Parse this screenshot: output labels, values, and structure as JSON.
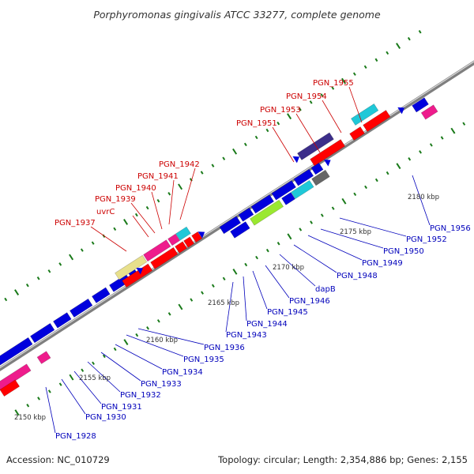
{
  "title": "Porphyromonas gingivalis ATCC 33277, complete genome",
  "footer": {
    "accession": "Accession: NC_010729",
    "topology": "Topology: circular; Length: 2,354,886 bp; Genes: 2,155"
  },
  "colors": {
    "backbone": "#8c8c8c",
    "tick": "#1a7a1a",
    "red_label": "#cc0000",
    "blue_label": "#0000bb",
    "gene_blue": "#0000dd",
    "gene_red": "#ff0000",
    "gene_magenta": "#ee1c8c",
    "gene_cyan": "#1fc8d8",
    "gene_navy": "#3c2e8a",
    "gene_khaki": "#e8e08c",
    "gene_lime": "#9ae830",
    "gene_grey": "#666666"
  },
  "scale_labels": [
    "2150 kbp",
    "2155 kbp",
    "2160 kbp",
    "2165 kbp",
    "2170 kbp",
    "2175 kbp",
    "2180 kbp"
  ],
  "top_labels": [
    "PGN_1937",
    "uvrC",
    "PGN_1939",
    "PGN_1940",
    "PGN_1941",
    "PGN_1942",
    "PGN_1951",
    "PGN_1953",
    "PGN_1954",
    "PGN_1955"
  ],
  "bottom_labels": [
    "PGN_1928",
    "PGN_1930",
    "PGN_1931",
    "PGN_1932",
    "PGN_1933",
    "PGN_1934",
    "PGN_1935",
    "PGN_1936",
    "PGN_1943",
    "PGN_1944",
    "PGN_1945",
    "PGN_1946",
    "dapB",
    "PGN_1948",
    "PGN_1949",
    "PGN_1950",
    "PGN_1952",
    "PGN_1956"
  ]
}
